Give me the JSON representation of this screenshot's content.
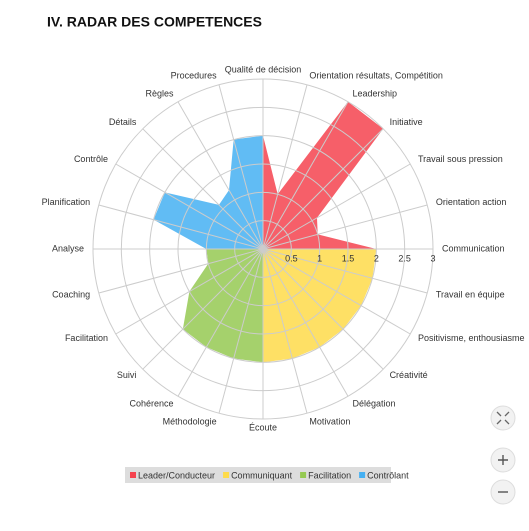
{
  "chart_data": {
    "type": "radar_area",
    "title": "IV. RADAR DES COMPETENCES",
    "categories": [
      "Qualité de décision",
      "Orientation résultats, Compétition",
      "Leadership",
      "Initiative",
      "Travail sous pression",
      "Orientation action",
      "Communication",
      "Travail en équipe",
      "Positivisme, enthousiasme",
      "Créativité",
      "Délégation",
      "Motivation",
      "Écoute",
      "Méthodologie",
      "Cohérence",
      "Suivi",
      "Facilitation",
      "Coaching",
      "Analyse",
      "Planification",
      "Contrôle",
      "Détails",
      "Règles",
      "Procedures"
    ],
    "series": [
      {
        "name": "Leader/Conducteur",
        "color": "#f5434f",
        "values": [
          2,
          1,
          3,
          3,
          1.1,
          1,
          2,
          0,
          0,
          0,
          0,
          0,
          0,
          0,
          0,
          0,
          0,
          0,
          0,
          0,
          0,
          0,
          0,
          0
        ]
      },
      {
        "name": "Communiquant",
        "color": "#fedb4a",
        "values": [
          0,
          0,
          0,
          0,
          0,
          0,
          2,
          2,
          2,
          2,
          2,
          2,
          2,
          0,
          0,
          0,
          0,
          0,
          0,
          0,
          0,
          0,
          0,
          0
        ]
      },
      {
        "name": "Facilitation",
        "color": "#95c952",
        "values": [
          0,
          0,
          0,
          0,
          0,
          0,
          0,
          0,
          0,
          0,
          0,
          0,
          2,
          2,
          2,
          2,
          1.5,
          1,
          1,
          0,
          0,
          0,
          0,
          0
        ]
      },
      {
        "name": "Contrôlant",
        "color": "#45b0f2",
        "values": [
          2,
          0,
          0,
          0,
          0,
          0,
          0,
          0,
          0,
          0,
          0,
          0,
          0,
          0,
          0,
          0,
          0,
          0,
          1,
          2,
          2,
          1.1,
          1.2,
          2
        ]
      }
    ],
    "ylim": [
      0,
      3
    ],
    "yticks": [
      0.5,
      1,
      1.5,
      2,
      2.5,
      3
    ],
    "grid": true
  }
}
